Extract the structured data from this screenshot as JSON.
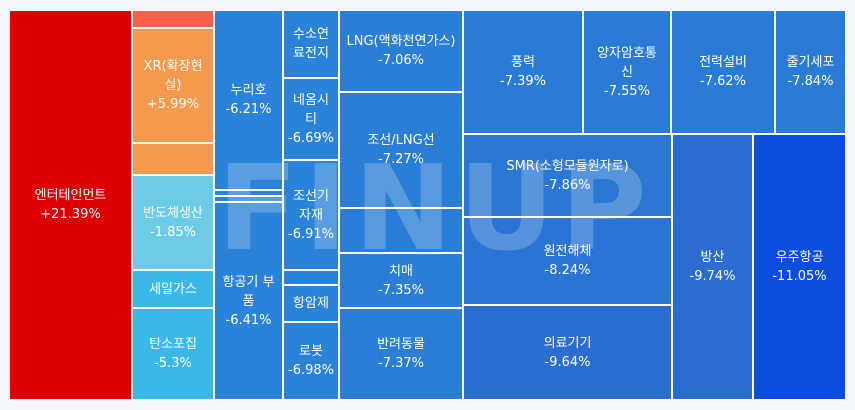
{
  "watermark": "FINUP",
  "chart_data": {
    "type": "treemap",
    "title": "",
    "items": [
      {
        "name": "엔터테인먼트",
        "value": "+21.39%",
        "change": 21.39,
        "color": "#dd0000"
      },
      {
        "name": "",
        "value": "",
        "change": null,
        "color": "#f4604b"
      },
      {
        "name": "XR(확장현\n실)",
        "value": "+5.99%",
        "change": 5.99,
        "color": "#f5994e"
      },
      {
        "name": "",
        "value": "",
        "change": null,
        "color": "#f5994e"
      },
      {
        "name": "반도체생산",
        "value": "-1.85%",
        "change": -1.85,
        "color": "#6ccbe6"
      },
      {
        "name": "세일가스",
        "value": "",
        "change": null,
        "color": "#3ab8ea"
      },
      {
        "name": "탄소포집",
        "value": "-5.3%",
        "change": -5.3,
        "color": "#3ab8ea"
      },
      {
        "name": "누리호",
        "value": "-6.21%",
        "change": -6.21,
        "color": "#2a83d9"
      },
      {
        "name": "",
        "value": "",
        "change": null,
        "color": "#2a83d9"
      },
      {
        "name": "",
        "value": "",
        "change": null,
        "color": "#2a83d9"
      },
      {
        "name": "항공기 부\n품",
        "value": "-6.41%",
        "change": -6.41,
        "color": "#2a83d9"
      },
      {
        "name": "수소연\n료전지",
        "value": "",
        "change": null,
        "color": "#2a83d9"
      },
      {
        "name": "네옴시\n티",
        "value": "-6.69%",
        "change": -6.69,
        "color": "#2a83d9"
      },
      {
        "name": "조선기\n자재",
        "value": "-6.91%",
        "change": -6.91,
        "color": "#2a83d9"
      },
      {
        "name": "",
        "value": "",
        "change": null,
        "color": "#2a83d9"
      },
      {
        "name": "항암제",
        "value": "",
        "change": null,
        "color": "#2a83d9"
      },
      {
        "name": "로봇",
        "value": "-6.98%",
        "change": -6.98,
        "color": "#2a83d9"
      },
      {
        "name": "LNG(액화천연가스)",
        "value": "-7.06%",
        "change": -7.06,
        "color": "#2a7ed6"
      },
      {
        "name": "조선/LNG선",
        "value": "-7.27%",
        "change": -7.27,
        "color": "#2a7ed6"
      },
      {
        "name": "",
        "value": "",
        "change": null,
        "color": "#2a7ed6"
      },
      {
        "name": "치매",
        "value": "-7.35%",
        "change": -7.35,
        "color": "#2a7ed6"
      },
      {
        "name": "반려동물",
        "value": "-7.37%",
        "change": -7.37,
        "color": "#2a7ed6"
      },
      {
        "name": "풍력",
        "value": "-7.39%",
        "change": -7.39,
        "color": "#2a7bd5"
      },
      {
        "name": "양자암호통\n신",
        "value": "-7.55%",
        "change": -7.55,
        "color": "#2a7bd5"
      },
      {
        "name": "전력설비",
        "value": "-7.62%",
        "change": -7.62,
        "color": "#2a7bd5"
      },
      {
        "name": "줄기세포",
        "value": "-7.84%",
        "change": -7.84,
        "color": "#2a7bd5"
      },
      {
        "name": "SMR(소형모듈원자로)",
        "value": "-7.86%",
        "change": -7.86,
        "color": "#2a78d4"
      },
      {
        "name": "원전해체",
        "value": "-8.24%",
        "change": -8.24,
        "color": "#2a74d3"
      },
      {
        "name": "의료기기",
        "value": "-9.64%",
        "change": -9.64,
        "color": "#2a6ed0"
      },
      {
        "name": "방산",
        "value": "-9.74%",
        "change": -9.74,
        "color": "#2a6ccf"
      },
      {
        "name": "우주항공",
        "value": "-11.05%",
        "change": -11.05,
        "color": "#0c4de0"
      }
    ]
  }
}
